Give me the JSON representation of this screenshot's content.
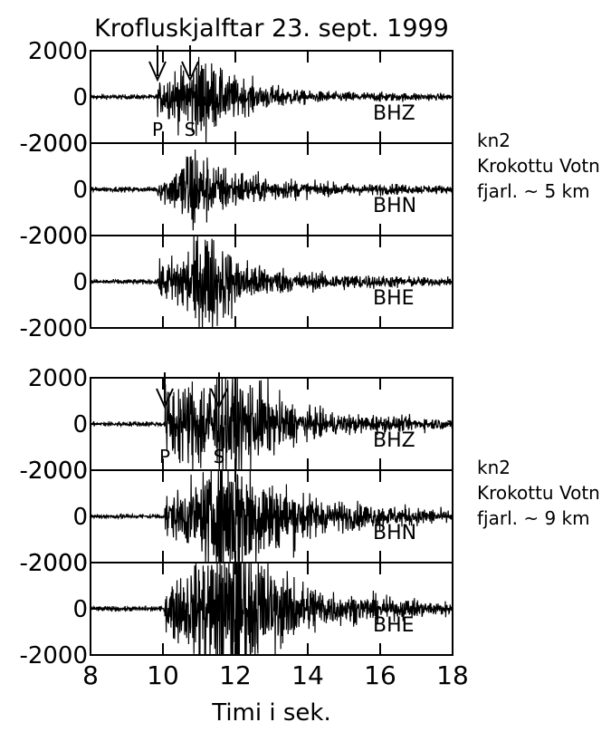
{
  "chart_data": {
    "type": "line",
    "title": "Krofluskjalftar 23. sept. 1999",
    "xlabel": "Timi i sek.",
    "xlim": [
      8,
      18
    ],
    "xticks": [
      "8",
      "10",
      "12",
      "14",
      "16",
      "18"
    ],
    "ylim": [
      -2000,
      2000
    ],
    "yticks": [
      "2000",
      "0",
      "-2000"
    ],
    "grid": false,
    "groups": [
      {
        "station": "kn2",
        "location": "Krokottu Votn",
        "distance": "fjarl. ~ 5 km",
        "picks": [
          {
            "label": "P",
            "time": 9.85
          },
          {
            "label": "S",
            "time": 10.75
          }
        ],
        "traces": [
          {
            "name": "BHZ",
            "noise": 60,
            "onset": 9.85,
            "envelope": [
              [
                9.85,
                400
              ],
              [
                10.3,
                600
              ],
              [
                10.75,
                900
              ],
              [
                11.1,
                1100
              ],
              [
                11.5,
                650
              ],
              [
                12.5,
                350
              ],
              [
                14,
                150
              ],
              [
                18,
                80
              ]
            ]
          },
          {
            "name": "BHN",
            "noise": 60,
            "onset": 9.85,
            "envelope": [
              [
                9.85,
                300
              ],
              [
                10.4,
                500
              ],
              [
                10.75,
                1400
              ],
              [
                11.0,
                900
              ],
              [
                11.5,
                600
              ],
              [
                12.5,
                350
              ],
              [
                14,
                180
              ],
              [
                18,
                90
              ]
            ]
          },
          {
            "name": "BHE",
            "noise": 60,
            "onset": 9.85,
            "envelope": [
              [
                9.85,
                350
              ],
              [
                10.5,
                800
              ],
              [
                11.2,
                1450
              ],
              [
                11.6,
                1000
              ],
              [
                12.2,
                550
              ],
              [
                13.5,
                250
              ],
              [
                18,
                90
              ]
            ]
          }
        ]
      },
      {
        "station": "kn2",
        "location": "Krokottu Votn",
        "distance": "fjarl. ~ 9 km",
        "picks": [
          {
            "label": "P",
            "time": 10.05
          },
          {
            "label": "S",
            "time": 11.55
          }
        ],
        "traces": [
          {
            "name": "BHZ",
            "noise": 60,
            "onset": 10.05,
            "envelope": [
              [
                10.05,
                900
              ],
              [
                10.5,
                1000
              ],
              [
                11.55,
                1400
              ],
              [
                12.0,
                1500
              ],
              [
                12.5,
                1100
              ],
              [
                13.5,
                500
              ],
              [
                15,
                250
              ],
              [
                18,
                120
              ]
            ]
          },
          {
            "name": "BHN",
            "noise": 60,
            "onset": 10.05,
            "envelope": [
              [
                10.05,
                500
              ],
              [
                11.0,
                900
              ],
              [
                11.8,
                1900
              ],
              [
                12.3,
                1500
              ],
              [
                13.0,
                900
              ],
              [
                14.5,
                400
              ],
              [
                18,
                150
              ]
            ]
          },
          {
            "name": "BHE",
            "noise": 60,
            "onset": 10.05,
            "envelope": [
              [
                10.05,
                600
              ],
              [
                11.0,
                1200
              ],
              [
                11.9,
                2300
              ],
              [
                12.4,
                1700
              ],
              [
                13.2,
                900
              ],
              [
                15,
                350
              ],
              [
                18,
                150
              ]
            ]
          }
        ]
      }
    ]
  }
}
